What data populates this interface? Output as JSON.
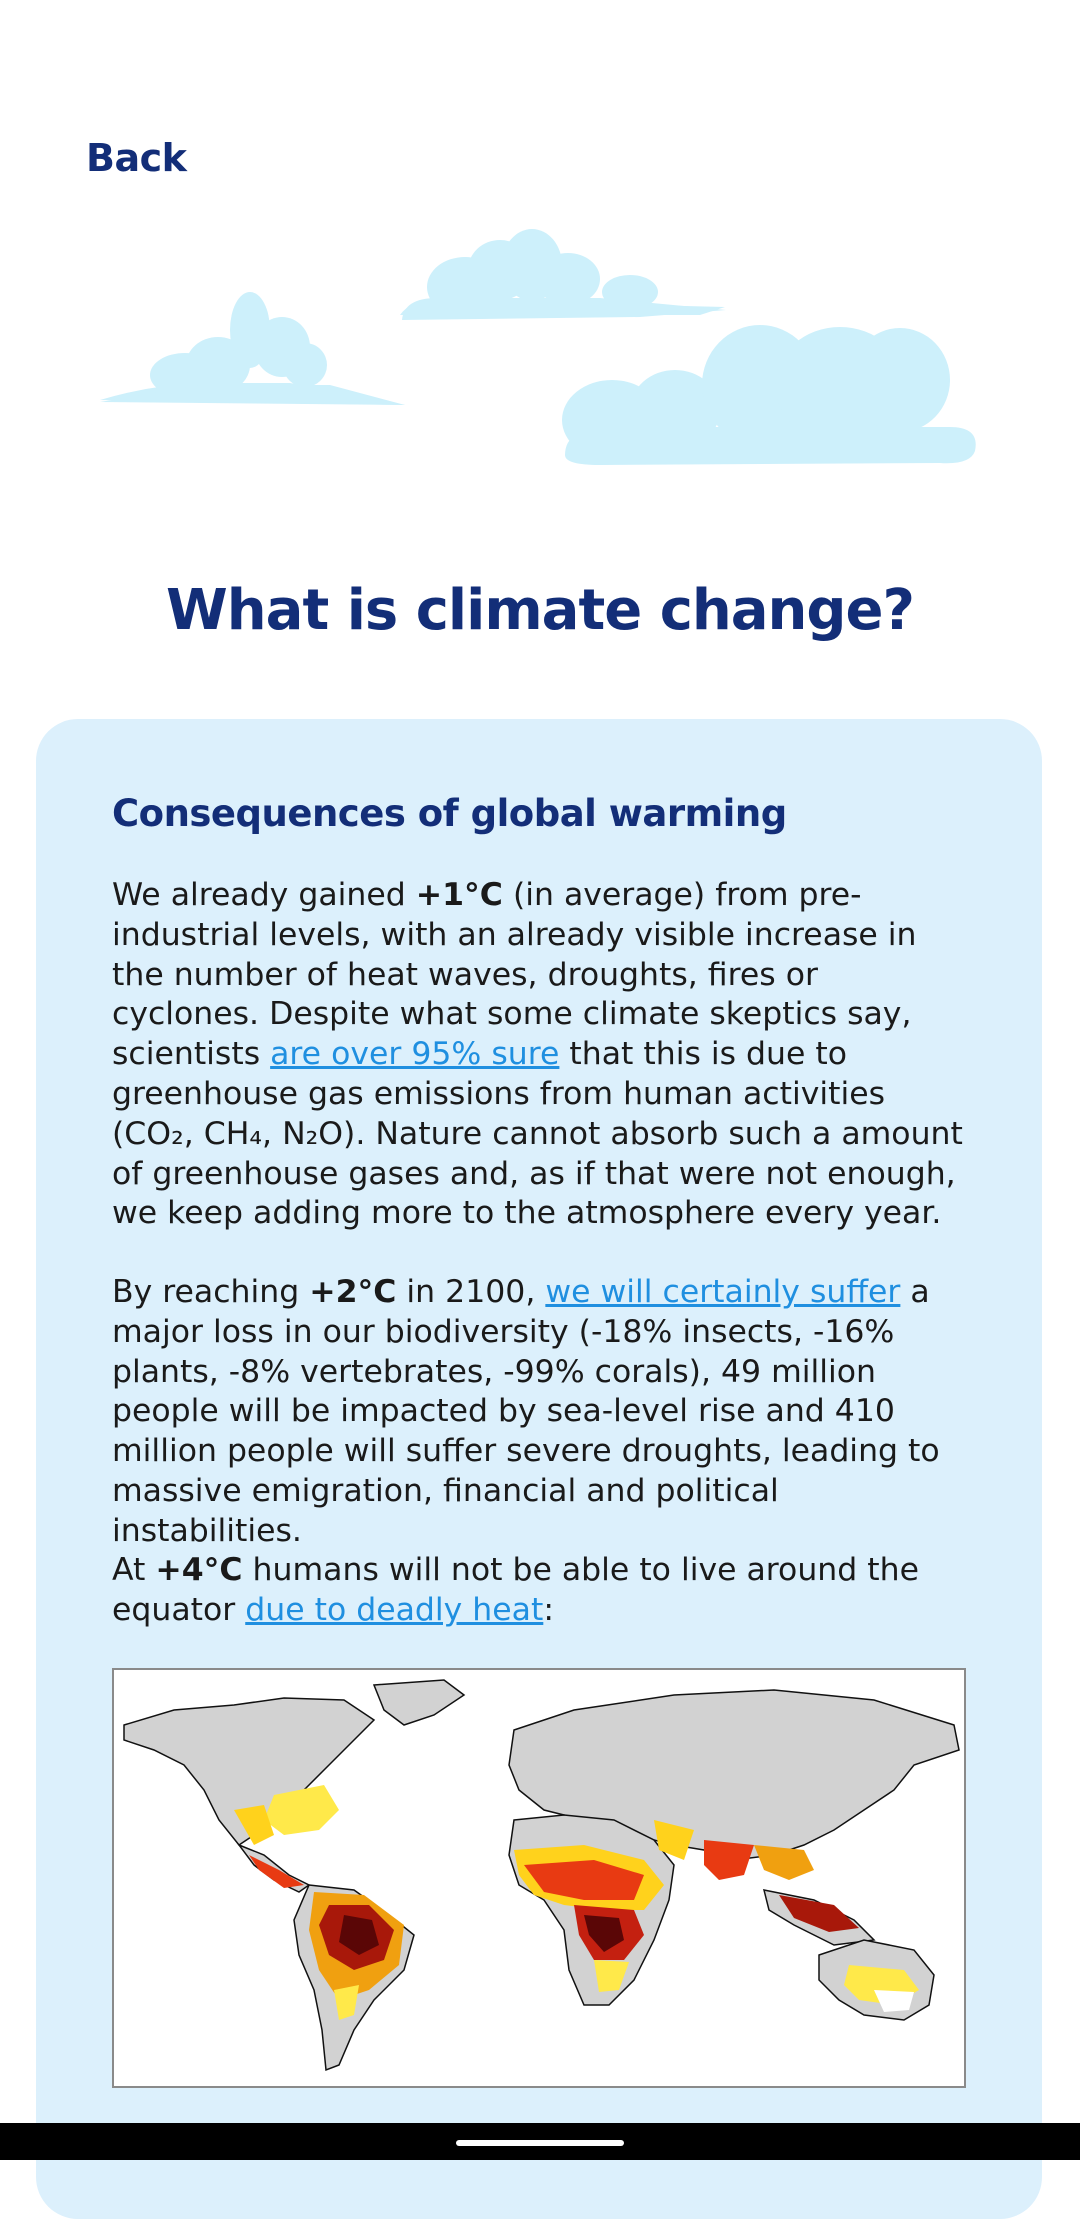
{
  "nav": {
    "back_label": "Back"
  },
  "page": {
    "title": "What is climate change?"
  },
  "section": {
    "heading": "Consequences of global warming",
    "p1": {
      "t1": "We already gained ",
      "b1": "+1°C",
      "t2": " (in average) from pre-industrial levels, with an already visible increase in the number of heat waves, droughts, fires or cyclones. Despite what some climate skeptics say, scientists ",
      "link": "are over 95% sure",
      "t3": " that this is due to greenhouse gas emissions from human activities (CO₂, CH₄, N₂O). Nature cannot absorb such a amount of greenhouse gases and, as if that were not enough, we keep adding more to the atmosphere every year."
    },
    "p2": {
      "t1": "By reaching ",
      "b1": "+2°C",
      "t2": " in 2100, ",
      "link": "we will certainly suffer",
      "t3": " a major loss in our biodiversity (-18% insects, -16% plants, -8% vertebrates, -99% corals), 49 million people will be impacted by sea-level rise and 410 million people will suffer severe droughts, leading to massive emigration, financial and political instabilities."
    },
    "p3": {
      "t1": "At ",
      "b1": "+4°C",
      "t2": " humans will not be able to live around the equator ",
      "link": "due to deadly heat",
      "t3": ":"
    }
  },
  "colors": {
    "title": "#132e78",
    "card_background": "#dcf0fc",
    "link": "#1f8fe0",
    "cloud": "#cdf0fb"
  },
  "icons": {
    "clouds": "cloud-icon",
    "map": "world-heat-map"
  }
}
